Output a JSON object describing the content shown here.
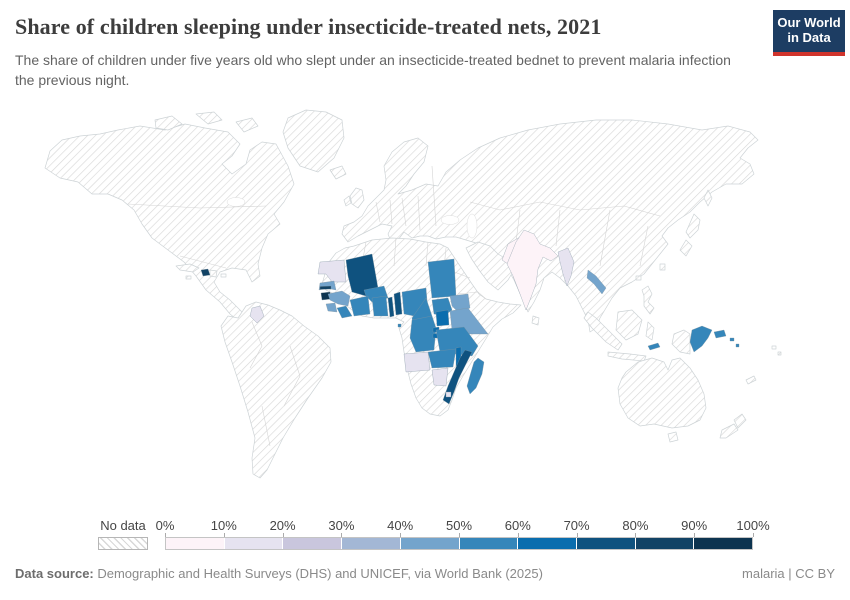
{
  "header": {
    "title": "Share of children sleeping under insecticide-treated nets, 2021",
    "subtitle": "The share of children under five years old who slept under an insecticide-treated bednet to prevent malaria infection the previous night.",
    "logo": {
      "line1": "Our World",
      "line2": "in Data",
      "bg_color": "#1d3d63",
      "accent_color": "#d0342c"
    }
  },
  "legend": {
    "no_data_label": "No data",
    "tick_labels": [
      "0%",
      "10%",
      "20%",
      "30%",
      "40%",
      "50%",
      "60%",
      "70%",
      "80%",
      "90%",
      "100%"
    ],
    "bins": [
      {
        "range": "0-10%",
        "color": "#fdf3f8"
      },
      {
        "range": "10-20%",
        "color": "#e6e3f0"
      },
      {
        "range": "20-30%",
        "color": "#c9c6dd"
      },
      {
        "range": "30-40%",
        "color": "#a3b7d5"
      },
      {
        "range": "40-50%",
        "color": "#74a4cc"
      },
      {
        "range": "50-60%",
        "color": "#3586ba"
      },
      {
        "range": "60-70%",
        "color": "#0a6dae"
      },
      {
        "range": "70-80%",
        "color": "#0f527f"
      },
      {
        "range": "80-90%",
        "color": "#124365"
      },
      {
        "range": "90-100%",
        "color": "#0d3450"
      }
    ]
  },
  "footer": {
    "source_label": "Data source:",
    "source_text": " Demographic and Health Surveys (DHS) and UNICEF, via World Bank (2025)",
    "license": "malaria | CC BY"
  },
  "chart_data": {
    "type": "choropleth_map",
    "title": "Share of children sleeping under insecticide-treated nets",
    "year": 2021,
    "unit": "% of children under five",
    "legend_bins": [
      "0-10%",
      "10-20%",
      "20-30%",
      "30-40%",
      "40-50%",
      "50-60%",
      "60-70%",
      "70-80%",
      "80-90%",
      "90-100%"
    ],
    "note": "All countries not listed are shown as No data (hatched pattern)",
    "countries": [
      {
        "name": "Mali",
        "bin": "70-80%"
      },
      {
        "name": "Mauritania",
        "bin": "10-20%"
      },
      {
        "name": "Senegal",
        "bin": "40-50%"
      },
      {
        "name": "Gambia",
        "bin": "80-90%"
      },
      {
        "name": "Guinea-Bissau",
        "bin": "90-100%"
      },
      {
        "name": "Guinea",
        "bin": "40-50%"
      },
      {
        "name": "Sierra Leone",
        "bin": "40-50%"
      },
      {
        "name": "Liberia",
        "bin": "50-60%"
      },
      {
        "name": "Cote d'Ivoire",
        "bin": "50-60%"
      },
      {
        "name": "Burkina Faso",
        "bin": "50-60%"
      },
      {
        "name": "Ghana",
        "bin": "50-60%"
      },
      {
        "name": "Togo",
        "bin": "70-80%"
      },
      {
        "name": "Benin",
        "bin": "70-80%"
      },
      {
        "name": "Nigeria",
        "bin": "50-60%"
      },
      {
        "name": "Chad",
        "bin": "50-60%"
      },
      {
        "name": "Cameroon",
        "bin": "50-60%"
      },
      {
        "name": "Central African Republic",
        "bin": "50-60%"
      },
      {
        "name": "South Sudan",
        "bin": "40-50%"
      },
      {
        "name": "DR Congo",
        "bin": "50-60%"
      },
      {
        "name": "Uganda",
        "bin": "60-70%"
      },
      {
        "name": "Kenya",
        "bin": "40-50%"
      },
      {
        "name": "Rwanda",
        "bin": "60-70%"
      },
      {
        "name": "Burundi",
        "bin": "60-70%"
      },
      {
        "name": "Tanzania",
        "bin": "50-60%"
      },
      {
        "name": "Zambia",
        "bin": "50-60%"
      },
      {
        "name": "Malawi",
        "bin": "60-70%"
      },
      {
        "name": "Mozambique",
        "bin": "70-80%"
      },
      {
        "name": "Zimbabwe",
        "bin": "10-20%"
      },
      {
        "name": "Angola",
        "bin": "10-20%"
      },
      {
        "name": "Eswatini",
        "bin": "10-20%"
      },
      {
        "name": "Madagascar",
        "bin": "50-60%"
      },
      {
        "name": "Sao Tome and Principe",
        "bin": "50-60%"
      },
      {
        "name": "Haiti",
        "bin": "80-90%"
      },
      {
        "name": "Guyana",
        "bin": "10-20%"
      },
      {
        "name": "India",
        "bin": "0-10%"
      },
      {
        "name": "Pakistan",
        "bin": "0-10%"
      },
      {
        "name": "Myanmar",
        "bin": "10-20%"
      },
      {
        "name": "Laos",
        "bin": "40-50%"
      },
      {
        "name": "Papua New Guinea",
        "bin": "50-60%"
      },
      {
        "name": "Solomon Islands",
        "bin": "50-60%"
      },
      {
        "name": "Timor-Leste",
        "bin": "50-60%"
      }
    ]
  }
}
